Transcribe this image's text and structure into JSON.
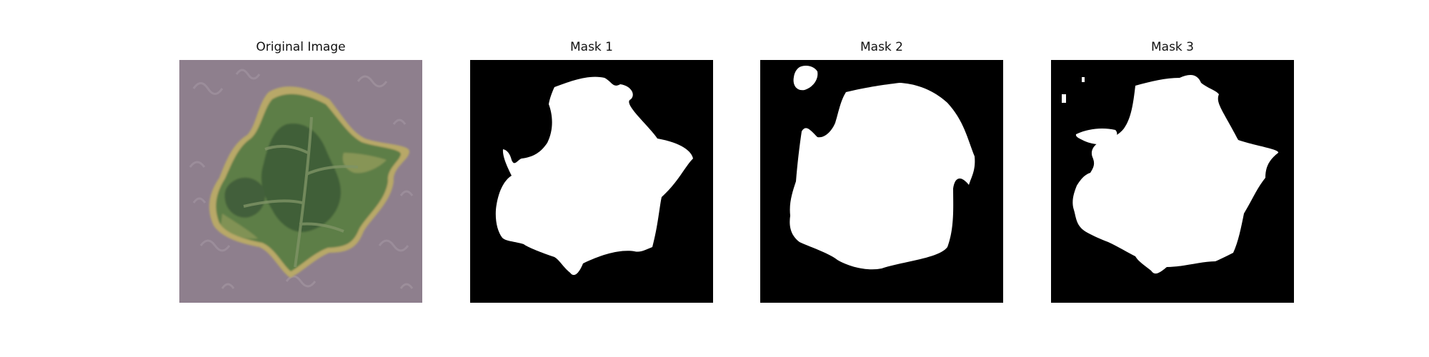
{
  "figure": {
    "panels": [
      {
        "title": "Original Image"
      },
      {
        "title": "Mask 1"
      },
      {
        "title": "Mask 2"
      },
      {
        "title": "Mask 3"
      }
    ]
  },
  "colors": {
    "background": "#ffffff",
    "mask_background": "#000000",
    "mask_foreground": "#ffffff",
    "fabric": "#8e7f8d",
    "leaf_dark": "#3f5f38",
    "leaf_mid": "#5d7e46",
    "leaf_light": "#9aa05e",
    "leaf_edge": "#b8a867"
  },
  "icons": {
    "original": "leaf-photo",
    "masks": "segmentation-mask"
  }
}
